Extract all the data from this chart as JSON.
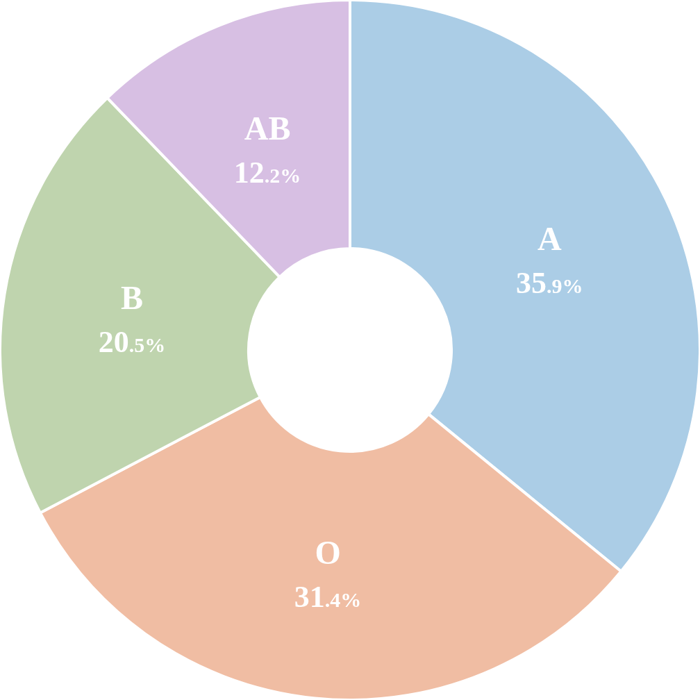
{
  "chart_data": {
    "type": "donut",
    "categories": [
      "A",
      "O",
      "B",
      "AB"
    ],
    "values": [
      35.9,
      31.4,
      20.5,
      12.2
    ],
    "colors": [
      "#abcde6",
      "#f0bda3",
      "#bfd4ae",
      "#d7bfe3"
    ],
    "value_labels": [
      "35.9%",
      "31.4%",
      "20.5%",
      "12.2%"
    ]
  }
}
